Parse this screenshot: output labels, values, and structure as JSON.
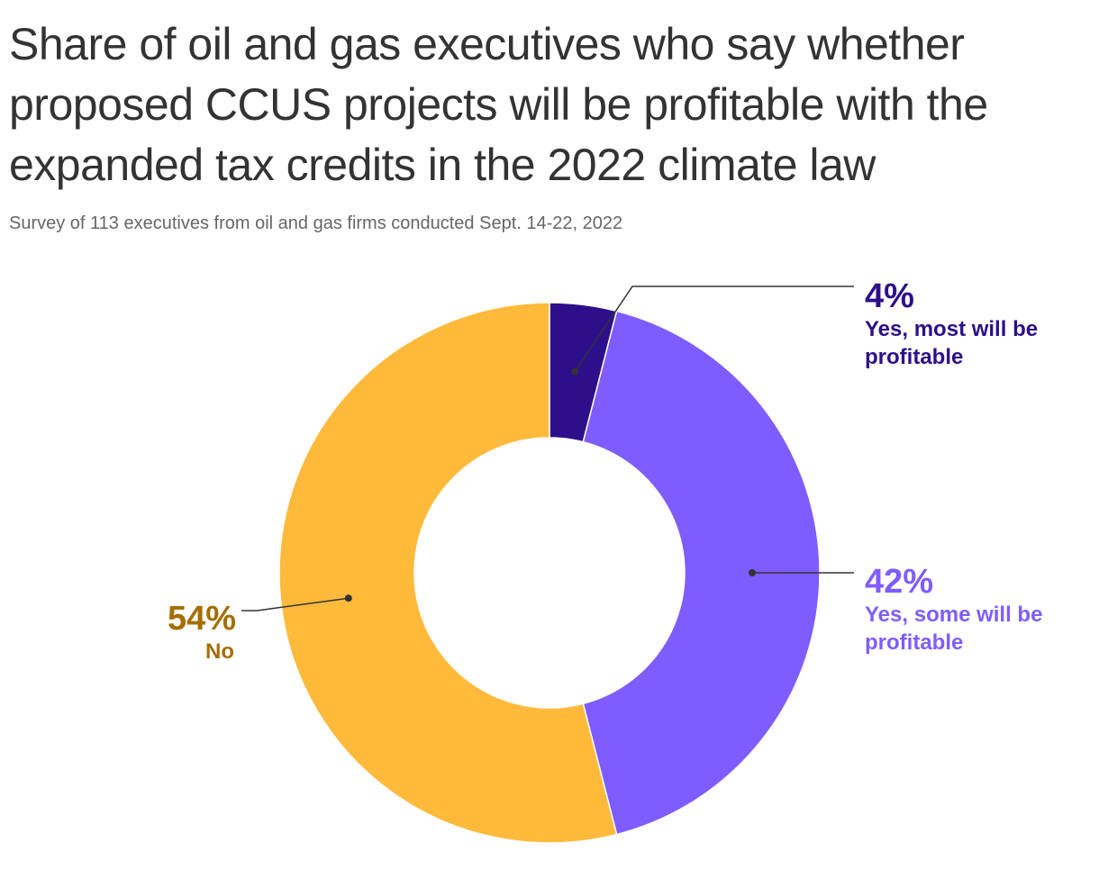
{
  "title": "Share of oil and gas executives who say whether proposed CCUS projects will be profitable with the expanded tax credits in the 2022 climate law",
  "subtitle": "Survey of 113 executives from oil and gas firms conducted Sept. 14-22, 2022",
  "chart_data": {
    "type": "pie",
    "title": "Share of oil and gas executives who say whether proposed CCUS projects will be profitable with the expanded tax credits in the 2022 climate law",
    "subtitle": "Survey of 113 executives from oil and gas firms conducted Sept. 14-22, 2022",
    "donut": true,
    "slices": [
      {
        "label": "Yes, most will be profitable",
        "label_lines": [
          "Yes, most will be",
          "profitable"
        ],
        "value": 4,
        "value_label": "4%",
        "color": "#2d0f8c",
        "text_color": "#2d0f8c"
      },
      {
        "label": "Yes, some will be profitable",
        "label_lines": [
          "Yes, some will be",
          "profitable"
        ],
        "value": 42,
        "value_label": "42%",
        "color": "#7f5cff",
        "text_color": "#7f5cff"
      },
      {
        "label": "No",
        "label_lines": [
          "No"
        ],
        "value": 54,
        "value_label": "54%",
        "color": "#ffba3b",
        "text_color": "#a66d00"
      }
    ]
  }
}
